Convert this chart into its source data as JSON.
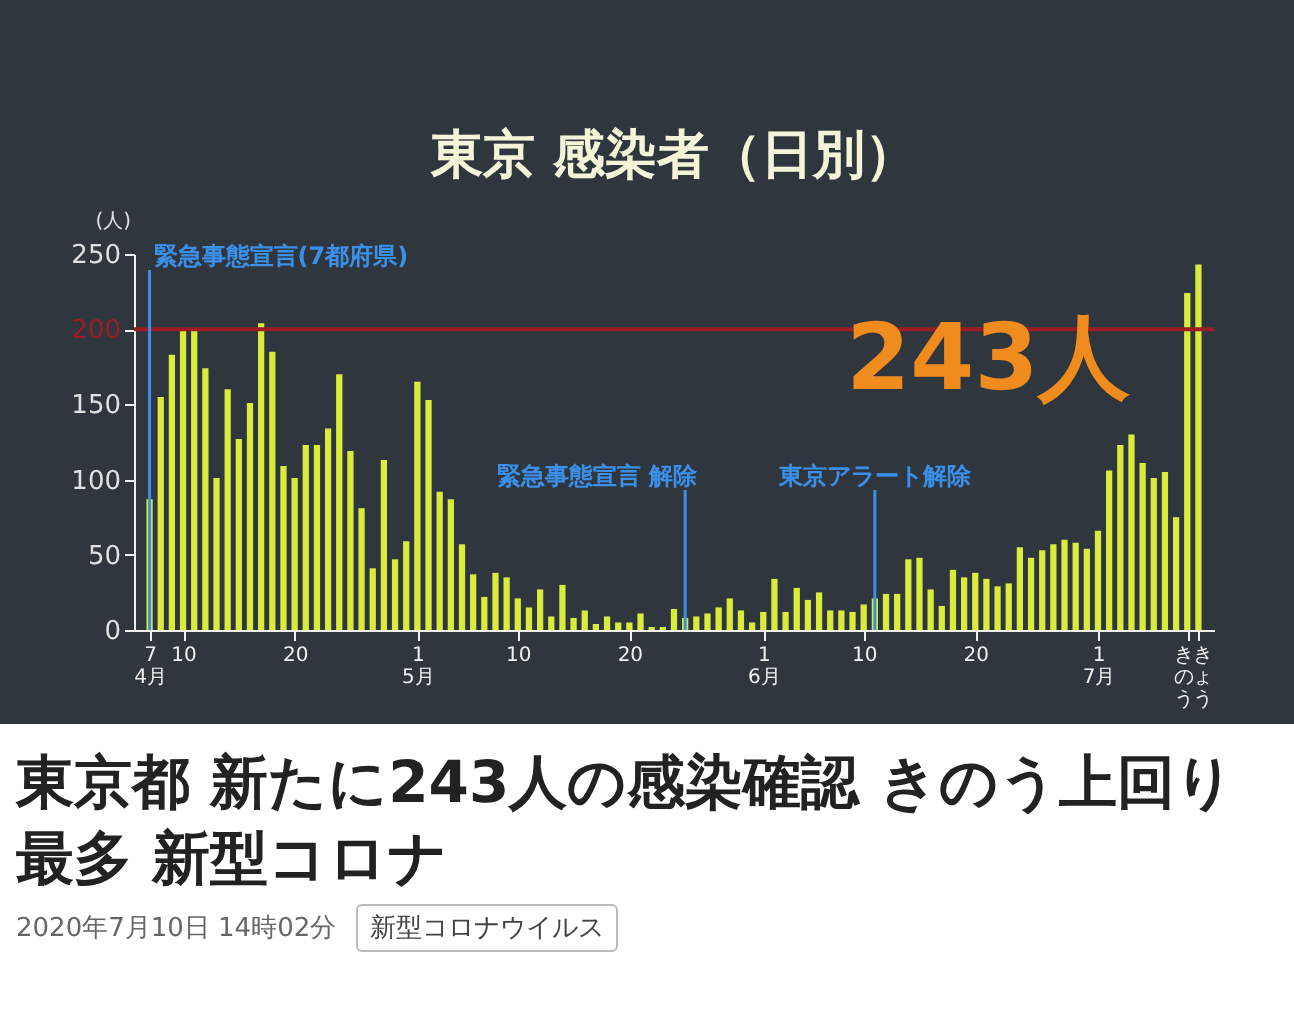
{
  "chart_data": {
    "type": "bar",
    "title": "東京 感染者（日別）",
    "ylabel": "(人)",
    "color": "#d9ec3c",
    "x": [
      "2020-04-07",
      "2020-04-08",
      "2020-04-09",
      "2020-04-10",
      "2020-04-11",
      "2020-04-12",
      "2020-04-13",
      "2020-04-14",
      "2020-04-15",
      "2020-04-16",
      "2020-04-17",
      "2020-04-18",
      "2020-04-19",
      "2020-04-20",
      "2020-04-21",
      "2020-04-22",
      "2020-04-23",
      "2020-04-24",
      "2020-04-25",
      "2020-04-26",
      "2020-04-27",
      "2020-04-28",
      "2020-04-29",
      "2020-04-30",
      "2020-05-01",
      "2020-05-02",
      "2020-05-03",
      "2020-05-04",
      "2020-05-05",
      "2020-05-06",
      "2020-05-07",
      "2020-05-08",
      "2020-05-09",
      "2020-05-10",
      "2020-05-11",
      "2020-05-12",
      "2020-05-13",
      "2020-05-14",
      "2020-05-15",
      "2020-05-16",
      "2020-05-17",
      "2020-05-18",
      "2020-05-19",
      "2020-05-20",
      "2020-05-21",
      "2020-05-22",
      "2020-05-23",
      "2020-05-24",
      "2020-05-25",
      "2020-05-26",
      "2020-05-27",
      "2020-05-28",
      "2020-05-29",
      "2020-05-30",
      "2020-05-31",
      "2020-06-01",
      "2020-06-02",
      "2020-06-03",
      "2020-06-04",
      "2020-06-05",
      "2020-06-06",
      "2020-06-07",
      "2020-06-08",
      "2020-06-09",
      "2020-06-10",
      "2020-06-11",
      "2020-06-12",
      "2020-06-13",
      "2020-06-14",
      "2020-06-15",
      "2020-06-16",
      "2020-06-17",
      "2020-06-18",
      "2020-06-19",
      "2020-06-20",
      "2020-06-21",
      "2020-06-22",
      "2020-06-23",
      "2020-06-24",
      "2020-06-25",
      "2020-06-26",
      "2020-06-27",
      "2020-06-28",
      "2020-06-29",
      "2020-06-30",
      "2020-07-01",
      "2020-07-02",
      "2020-07-03",
      "2020-07-04",
      "2020-07-05",
      "2020-07-06",
      "2020-07-07",
      "2020-07-08",
      "2020-07-09",
      "2020-07-10"
    ],
    "values": [
      87,
      155,
      183,
      199,
      199,
      174,
      101,
      160,
      127,
      151,
      204,
      185,
      109,
      101,
      123,
      123,
      134,
      170,
      119,
      81,
      41,
      113,
      47,
      59,
      165,
      153,
      92,
      87,
      57,
      37,
      22,
      38,
      35,
      21,
      15,
      27,
      9,
      30,
      8,
      13,
      4,
      9,
      5,
      5,
      11,
      2,
      2,
      14,
      8,
      9,
      11,
      15,
      21,
      13,
      5,
      12,
      34,
      12,
      28,
      20,
      25,
      13,
      13,
      12,
      17,
      21,
      24,
      24,
      47,
      48,
      27,
      16,
      40,
      35,
      38,
      34,
      29,
      31,
      55,
      48,
      53,
      57,
      60,
      58,
      54,
      66,
      106,
      123,
      130,
      111,
      101,
      105,
      75,
      224,
      243
    ],
    "xlim": [
      "2020-04-06T12:00",
      "2020-07-10T12:00"
    ],
    "xticks": [
      {
        "value": "2020-04-07",
        "label": "7\n4月"
      },
      {
        "value": "2020-04-10",
        "label": "10"
      },
      {
        "value": "2020-04-20",
        "label": "20"
      },
      {
        "value": "2020-05-01",
        "label": "1\n5月"
      },
      {
        "value": "2020-05-10",
        "label": "10"
      },
      {
        "value": "2020-05-20",
        "label": "20"
      },
      {
        "value": "2020-06-01",
        "label": "1\n6月"
      },
      {
        "value": "2020-06-10",
        "label": "10"
      },
      {
        "value": "2020-06-20",
        "label": "20"
      },
      {
        "value": "2020-07-01",
        "label": "1\n7月"
      },
      {
        "value": "2020-07-09",
        "label": "きのう"
      },
      {
        "value": "2020-07-10",
        "label": "きょう"
      }
    ],
    "ylim": [
      0,
      250
    ],
    "yticks": [
      0,
      50,
      100,
      150,
      200,
      250
    ],
    "ref_lines": [
      {
        "axis": "y",
        "value": 200,
        "color": "#9a1c24"
      },
      {
        "axis": "x",
        "value": "2020-04-07",
        "label": "緊急事態宣言(7都府県)",
        "color": "#3a8fe8"
      },
      {
        "axis": "x",
        "value": "2020-05-25",
        "label": "緊急事態宣言 解除",
        "color": "#3a8fe8"
      },
      {
        "axis": "x",
        "value": "2020-06-11",
        "label": "東京アラート解除",
        "color": "#3a8fe8"
      }
    ],
    "annotations": [
      {
        "text": "243人",
        "x": "2020-07-10",
        "y": 243
      },
      "東京都 新たに243人の感染確認 きのう上回り最多 新型コロナ",
      "2020年7月10日 14時02分",
      "新型コロナウイルス"
    ]
  }
}
